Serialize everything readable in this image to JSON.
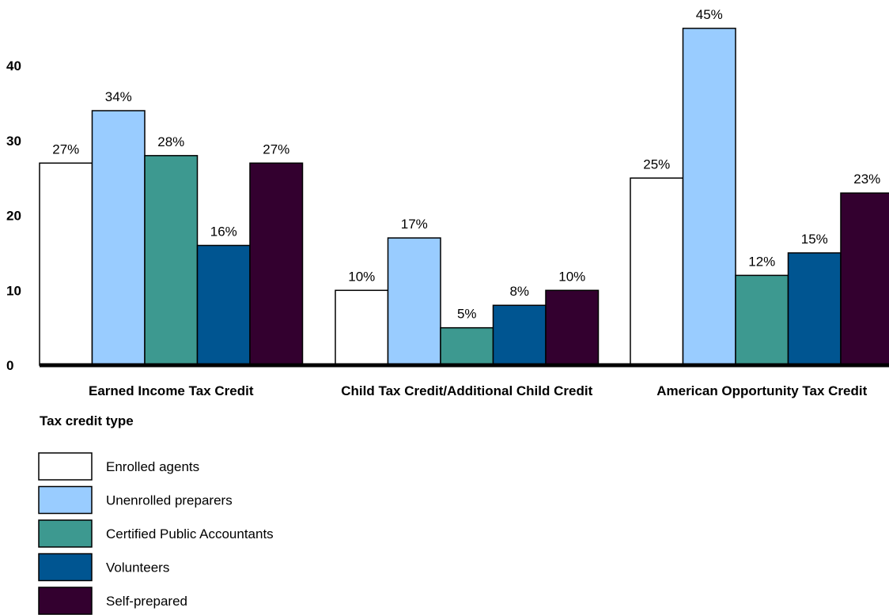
{
  "chart_data": {
    "type": "bar",
    "xlabel": "Tax credit type",
    "ylabel": "",
    "ylim": [
      0,
      45
    ],
    "yticks": [
      0,
      10,
      20,
      30,
      40
    ],
    "grid": false,
    "legend_position": "bottom-left",
    "value_suffix": "%",
    "categories": [
      "Earned Income Tax Credit",
      "Child Tax Credit/Additional Child Credit",
      "American Opportunity Tax Credit"
    ],
    "series": [
      {
        "name": "Enrolled agents",
        "color": "#ffffff",
        "values": [
          27,
          10,
          25
        ]
      },
      {
        "name": "Unenrolled preparers",
        "color": "#99ccff",
        "values": [
          34,
          17,
          45
        ]
      },
      {
        "name": "Certified Public Accountants",
        "color": "#3d9990",
        "values": [
          28,
          5,
          12
        ]
      },
      {
        "name": "Volunteers",
        "color": "#005591",
        "values": [
          16,
          8,
          15
        ]
      },
      {
        "name": "Self-prepared",
        "color": "#33002f",
        "values": [
          27,
          10,
          23
        ]
      }
    ]
  }
}
